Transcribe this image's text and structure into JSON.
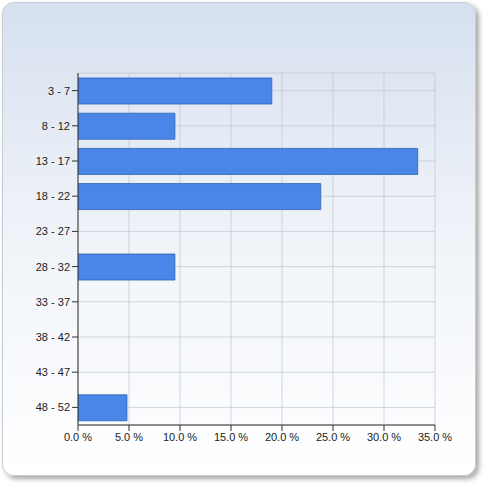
{
  "chart_data": {
    "type": "bar",
    "orientation": "horizontal",
    "categories": [
      "3 - 7",
      "8 - 12",
      "13 - 17",
      "18 - 22",
      "23 - 27",
      "28 - 32",
      "33 - 37",
      "38 - 42",
      "43 - 47",
      "48 - 52"
    ],
    "values": [
      19.0,
      9.5,
      33.3,
      23.8,
      0,
      9.5,
      0,
      0,
      0,
      4.8
    ],
    "color": "#4a86e8",
    "xlim": [
      0,
      35
    ],
    "xticks": [
      {
        "value": 0,
        "label": "0.0 %"
      },
      {
        "value": 5,
        "label": "5.0 %"
      },
      {
        "value": 10,
        "label": "10.0 %"
      },
      {
        "value": 15,
        "label": "15.0 %"
      },
      {
        "value": 20,
        "label": "20.0 %"
      },
      {
        "value": 25,
        "label": "25.0 %"
      },
      {
        "value": 30,
        "label": "30.0 %"
      },
      {
        "value": 35,
        "label": "35.0 %"
      }
    ],
    "grid": true
  }
}
